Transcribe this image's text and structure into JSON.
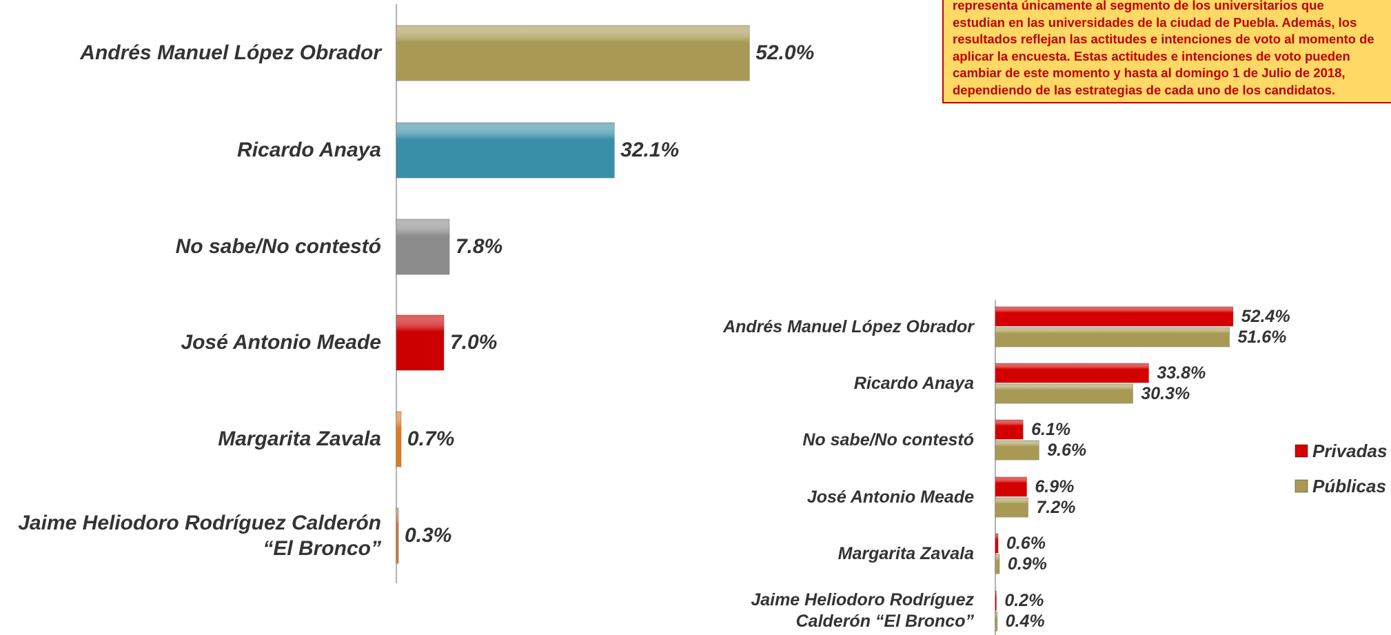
{
  "note": {
    "lines": [
      "representa únicamente al segmento de los universitarios que",
      "estudian en las universidades de la ciudad de Puebla. Además, los",
      "resultados reflejan las actitudes e intenciones de voto al momento de",
      "aplicar la encuesta. Estas actitudes e intenciones de voto pueden",
      "cambiar de este momento y hasta al domingo 1 de Julio de 2018,",
      "dependiendo de las estrategias de cada uno de los candidatos."
    ]
  },
  "chart_data": [
    {
      "type": "bar",
      "orientation": "horizontal",
      "categories": [
        "Andrés Manuel López Obrador",
        "Ricardo Anaya",
        "No sabe/No contestó",
        "José Antonio Meade",
        "Margarita Zavala",
        "Jaime Heliodoro Rodríguez Calderón “El Bronco”"
      ],
      "values": [
        52.0,
        32.1,
        7.8,
        7.0,
        0.7,
        0.3
      ],
      "value_labels": [
        "52.0%",
        "32.1%",
        "7.8%",
        "7.0%",
        "0.7%",
        "0.3%"
      ],
      "colors": [
        "#a89a55",
        "#3a8fa8",
        "#8c8c8c",
        "#cc0000",
        "#e07a1f",
        "#c8763a"
      ],
      "xlim": [
        0,
        60
      ]
    },
    {
      "type": "grouped_bar",
      "orientation": "horizontal",
      "categories": [
        "Andrés Manuel López Obrador",
        "Ricardo Anaya",
        "No sabe/No contestó",
        "José Antonio Meade",
        "Margarita Zavala",
        "Jaime Heliodoro Rodríguez Calderón “El Bronco”"
      ],
      "series": [
        {
          "name": "Privadas",
          "color": "#d40000",
          "values": [
            52.4,
            33.8,
            6.1,
            6.9,
            0.6,
            0.2
          ],
          "value_labels": [
            "52.4%",
            "33.8%",
            "6.1%",
            "6.9%",
            "0.6%",
            "0.2%"
          ]
        },
        {
          "name": "Públicas",
          "color": "#a89a55",
          "values": [
            51.6,
            30.3,
            9.6,
            7.2,
            0.9,
            0.4
          ],
          "value_labels": [
            "51.6%",
            "30.3%",
            "9.6%",
            "7.2%",
            "0.9%",
            "0.4%"
          ]
        }
      ],
      "xlim": [
        0,
        60
      ],
      "legend": "right"
    }
  ]
}
